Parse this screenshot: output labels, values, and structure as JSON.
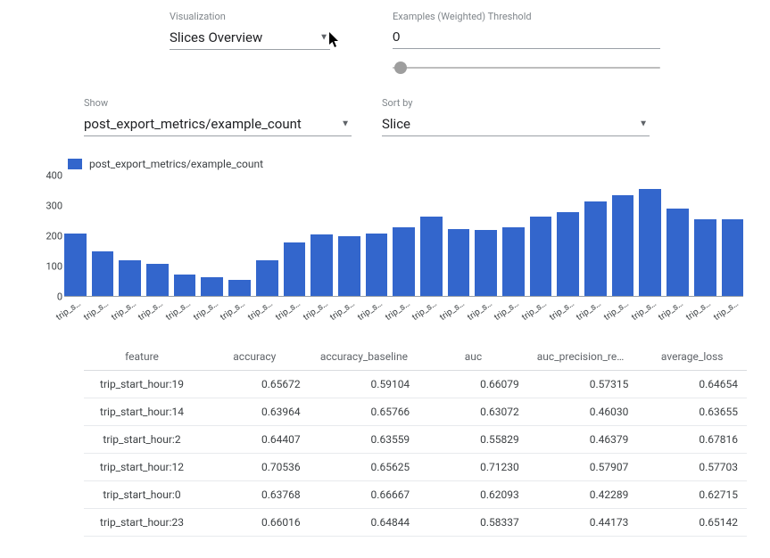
{
  "controls": {
    "visualization": {
      "label": "Visualization",
      "value": "Slices Overview"
    },
    "threshold": {
      "label": "Examples (Weighted) Threshold",
      "value": "0",
      "slider": {
        "min": 0,
        "max": 1,
        "position_pct": 3
      }
    },
    "show": {
      "label": "Show",
      "value": "post_export_metrics/example_count"
    },
    "sort": {
      "label": "Sort by",
      "value": "Slice"
    }
  },
  "chart": {
    "type": "bar",
    "legend_label": "post_export_metrics/example_count",
    "bar_color": "#3366cc",
    "background_color": "#ffffff",
    "axis_color": "#9aa0a6",
    "text_color": "#3c4043",
    "ylim": [
      0,
      400
    ],
    "yticks": [
      0,
      100,
      200,
      300,
      400
    ],
    "x_label_text": "trip_s…",
    "values": [
      210,
      150,
      120,
      110,
      75,
      65,
      55,
      120,
      180,
      205,
      200,
      210,
      230,
      265,
      225,
      220,
      230,
      265,
      280,
      315,
      335,
      355,
      290,
      255,
      255
    ],
    "bar_count": 25
  },
  "table": {
    "columns": [
      "feature",
      "accuracy",
      "accuracy_baseline",
      "auc",
      "auc_precision_recall",
      "average_loss"
    ],
    "rows": [
      [
        "trip_start_hour:19",
        "0.65672",
        "0.59104",
        "0.66079",
        "0.57315",
        "0.64654"
      ],
      [
        "trip_start_hour:14",
        "0.63964",
        "0.65766",
        "0.63072",
        "0.46030",
        "0.63655"
      ],
      [
        "trip_start_hour:2",
        "0.64407",
        "0.63559",
        "0.55829",
        "0.46379",
        "0.67816"
      ],
      [
        "trip_start_hour:12",
        "0.70536",
        "0.65625",
        "0.71230",
        "0.57907",
        "0.57703"
      ],
      [
        "trip_start_hour:0",
        "0.63768",
        "0.66667",
        "0.62093",
        "0.42289",
        "0.62715"
      ],
      [
        "trip_start_hour:23",
        "0.66016",
        "0.64844",
        "0.58337",
        "0.44173",
        "0.65142"
      ]
    ]
  }
}
